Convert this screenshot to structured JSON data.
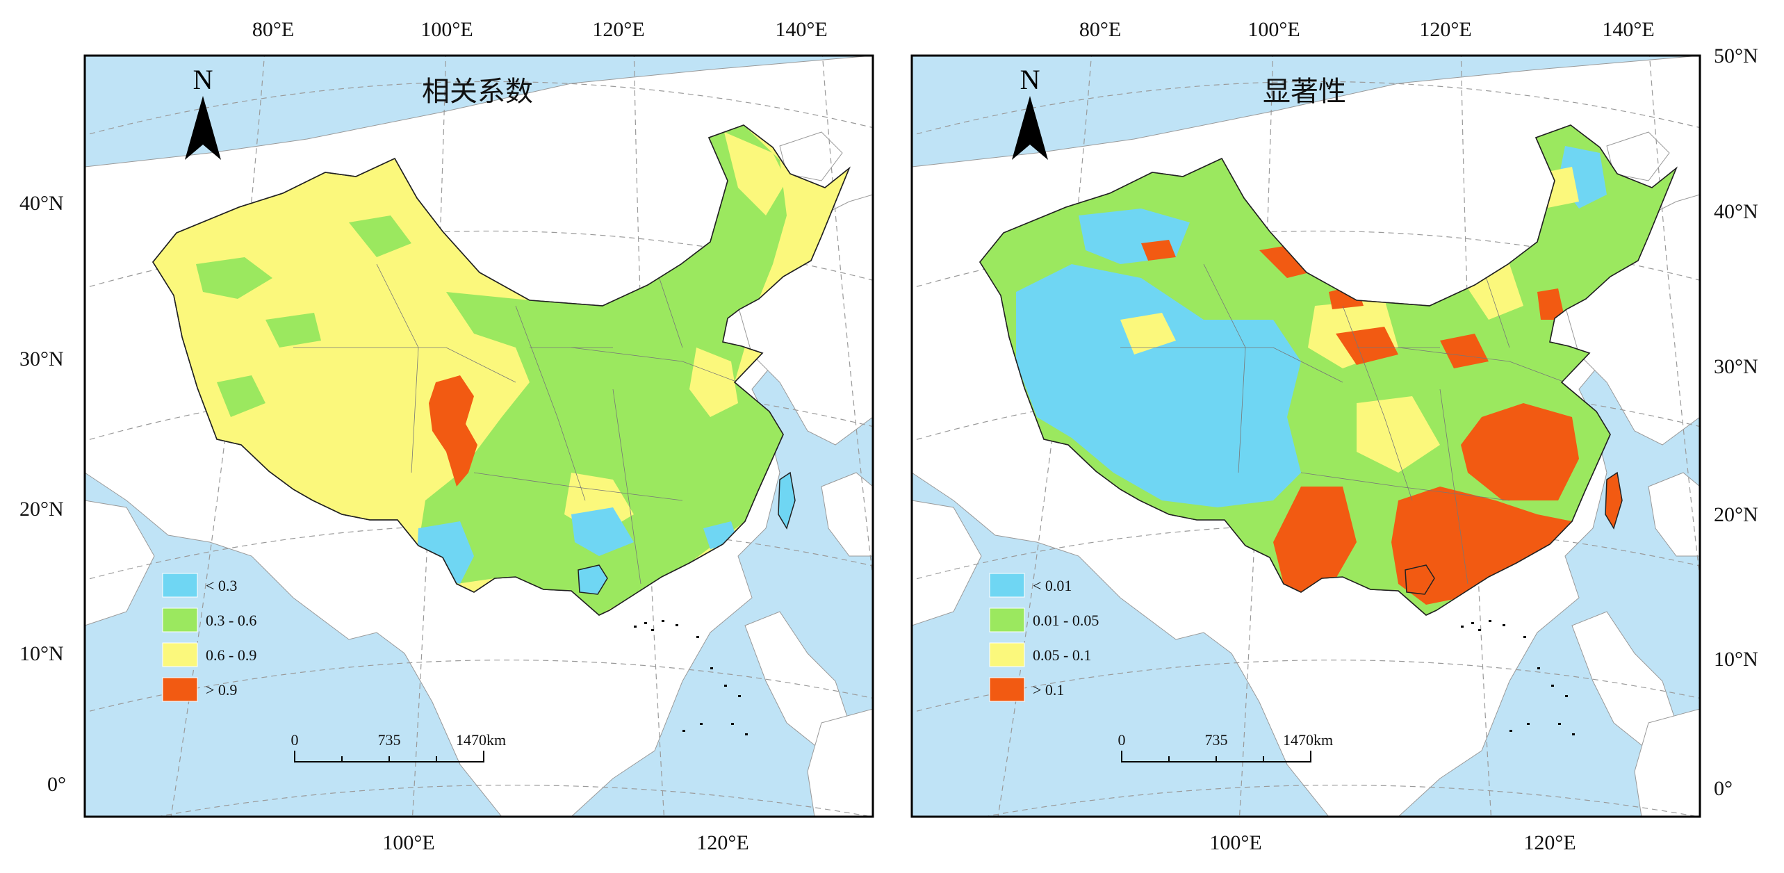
{
  "colors": {
    "sea": "#bfe3f6",
    "land": "#ffffff",
    "frame": "#000000",
    "graticule": "#9a9a9a",
    "class1": "#6fd6f3",
    "class2": "#9be85f",
    "class3": "#fbf87c",
    "class4": "#f25a12"
  },
  "panels": [
    {
      "title": "相关系数",
      "legend": [
        "< 0.3",
        "0.3 - 0.6",
        "0.6 - 0.9",
        "> 0.9"
      ],
      "north": "N",
      "scale": {
        "labels": [
          "0",
          "735",
          "1470"
        ],
        "unit": "km"
      },
      "top_ticks": [
        "80°E",
        "100°E",
        "120°E",
        "140°E"
      ],
      "bottom_ticks": [
        "100°E",
        "120°E"
      ]
    },
    {
      "title": "显著性",
      "legend": [
        "< 0.01",
        "0.01 - 0.05",
        "0.05 - 0.1",
        "> 0.1"
      ],
      "north": "N",
      "scale": {
        "labels": [
          "0",
          "735",
          "1470"
        ],
        "unit": "km"
      },
      "top_ticks": [
        "80°E",
        "100°E",
        "120°E",
        "140°E"
      ],
      "bottom_ticks": [
        "100°E",
        "120°E"
      ]
    }
  ],
  "left_lat_ticks": [
    "40°N",
    "30°N",
    "20°N",
    "10°N",
    "0°"
  ],
  "right_lat_ticks": [
    "50°N",
    "40°N",
    "30°N",
    "20°N",
    "10°N",
    "0°"
  ]
}
